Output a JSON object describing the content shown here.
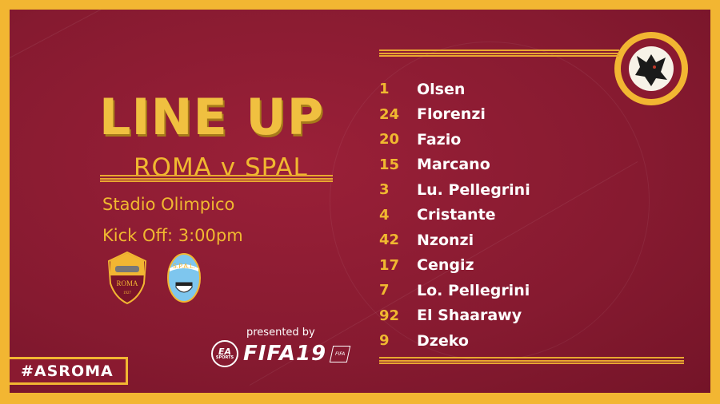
{
  "header": {
    "title": "LINE UP",
    "fixture": "ROMA v SPAL"
  },
  "match": {
    "venue": "Stadio Olimpico",
    "kickoff": "Kick Off: 3:00pm"
  },
  "crests": {
    "home": {
      "name": "ROMA",
      "year": "1927"
    },
    "away": {
      "name": "S.P.A.L."
    }
  },
  "sponsor": {
    "presented_by": "presented by",
    "ea_top": "EA",
    "ea_bottom": "SPORTS",
    "game": "FIFA19",
    "badge": "FIFA"
  },
  "hashtag": "#ASROMA",
  "lineup": [
    {
      "number": "1",
      "name": "Olsen"
    },
    {
      "number": "24",
      "name": "Florenzi"
    },
    {
      "number": "20",
      "name": "Fazio"
    },
    {
      "number": "15",
      "name": "Marcano"
    },
    {
      "number": "3",
      "name": "Lu. Pellegrini"
    },
    {
      "number": "4",
      "name": "Cristante"
    },
    {
      "number": "42",
      "name": "Nzonzi"
    },
    {
      "number": "17",
      "name": "Cengiz"
    },
    {
      "number": "7",
      "name": "Lo. Pellegrini"
    },
    {
      "number": "92",
      "name": "El Shaarawy"
    },
    {
      "number": "9",
      "name": "Dzeko"
    }
  ],
  "colors": {
    "gold": "#f2b632",
    "maroon": "#8e1b32",
    "white": "#ffffff"
  }
}
